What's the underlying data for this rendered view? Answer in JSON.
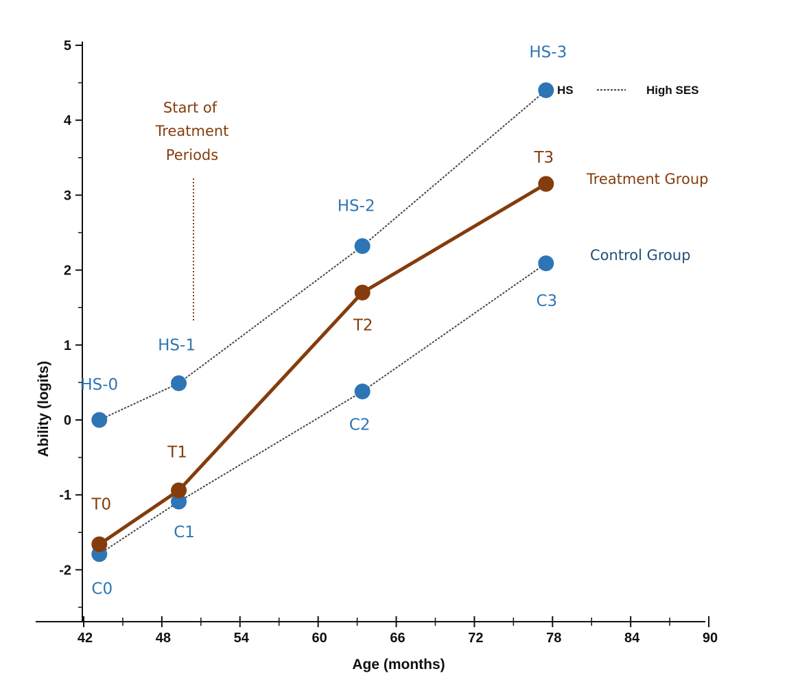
{
  "chart_data": {
    "type": "line",
    "xlabel": "Age (months)",
    "ylabel": "Ability (logits)",
    "xlim": [
      41,
      91
    ],
    "ylim": [
      -2.7,
      5.05
    ],
    "xticks": [
      42,
      48,
      54,
      60,
      66,
      72,
      78,
      84,
      90
    ],
    "yticks": [
      -2,
      -1,
      0,
      1,
      2,
      3,
      4,
      5
    ],
    "grid": false,
    "colors": {
      "hs": "#2e75b6",
      "control": "#2e75b6",
      "treatment": "#843c0c",
      "annotation": "#843c0c",
      "control_label": "#1f4e79",
      "axis": "#111111",
      "dotted": "#444444"
    },
    "series": [
      {
        "key": "hs",
        "x": [
          43.2,
          49.3,
          63.4,
          77.5
        ],
        "y": [
          0.0,
          0.49,
          2.32,
          4.4
        ],
        "point_labels": [
          "HS-0",
          "HS-1",
          "HS-2",
          "HS-3"
        ],
        "line": "dotted"
      },
      {
        "key": "treatment",
        "name": "Treatment Group",
        "x": [
          43.2,
          49.3,
          63.4,
          77.5
        ],
        "y": [
          -1.66,
          -0.94,
          1.7,
          3.15
        ],
        "point_labels": [
          "T0",
          "T1",
          "T2",
          "T3"
        ],
        "line": "solid"
      },
      {
        "key": "control",
        "name": "Control Group",
        "x": [
          43.2,
          49.3,
          63.4,
          77.5
        ],
        "y": [
          -1.79,
          -1.09,
          0.38,
          2.09
        ],
        "point_labels": [
          "C0",
          "C1",
          "C2",
          "C3"
        ],
        "line": "dotted"
      }
    ],
    "legend": {
      "hs_abbrev": "HS",
      "hs_name": "High SES",
      "treatment": "Treatment Group",
      "control": "Control Group"
    },
    "annotation": {
      "lines": [
        "Start of",
        "Treatment",
        "Periods"
      ],
      "x": 49.3
    }
  }
}
